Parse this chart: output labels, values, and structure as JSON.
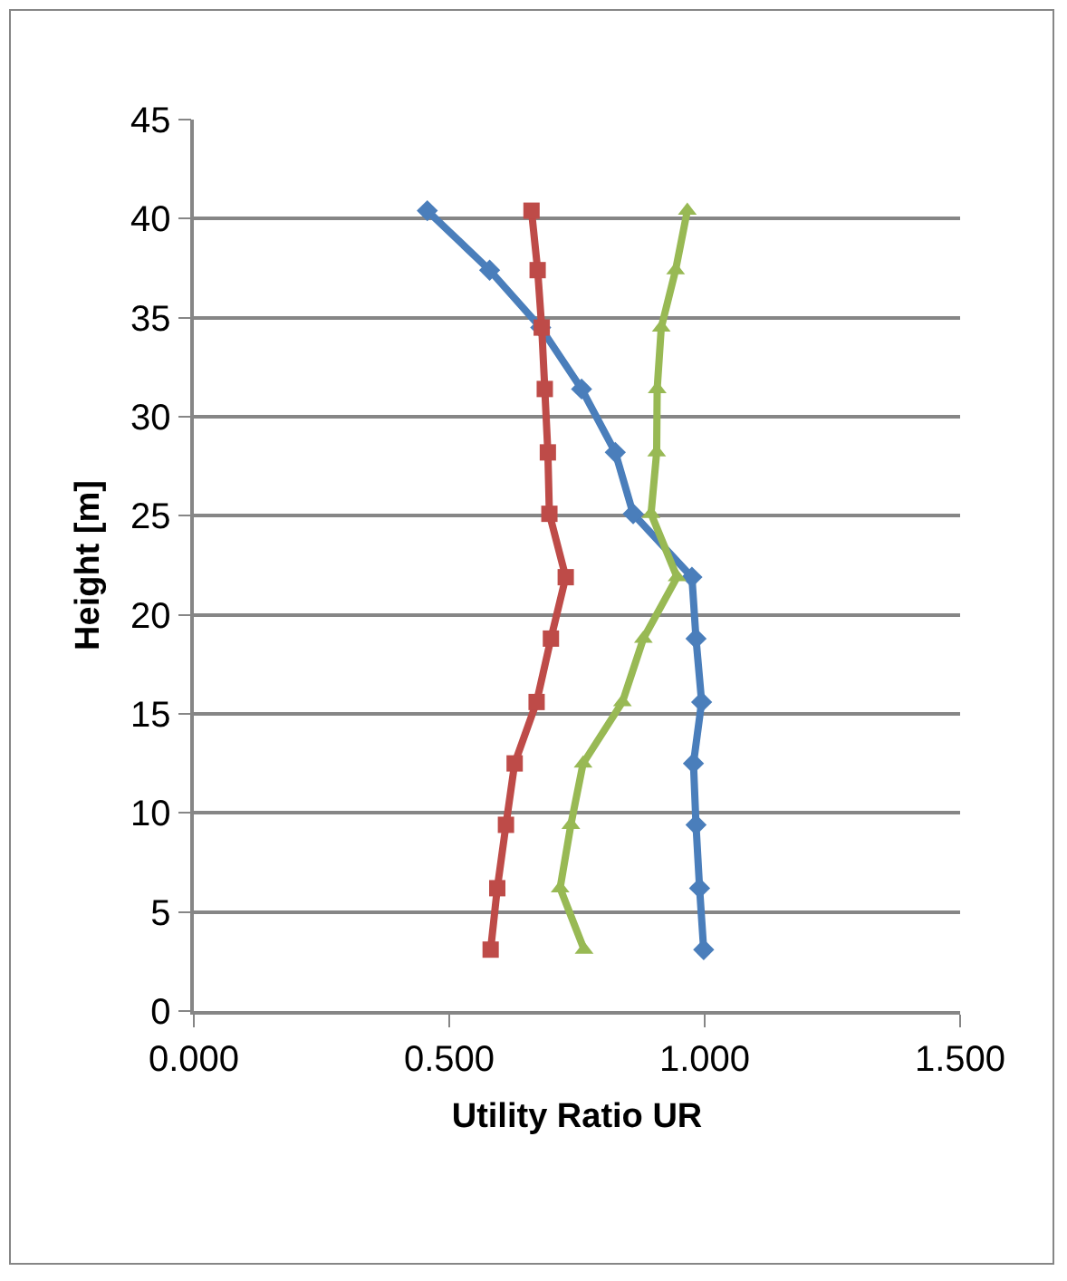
{
  "chart_data": {
    "type": "line",
    "xlabel": "Utility Ratio UR",
    "ylabel": "Height [m]",
    "xlim": [
      0,
      1.5
    ],
    "xticks": [
      {
        "value": 0,
        "label": "0.000"
      },
      {
        "value": 0.5,
        "label": "0.500"
      },
      {
        "value": 1,
        "label": "1.000"
      },
      {
        "value": 1.5,
        "label": "1.500"
      }
    ],
    "ylim": [
      0,
      45
    ],
    "yticks": [
      0,
      5,
      10,
      15,
      20,
      25,
      30,
      35,
      40,
      45
    ],
    "grid": "y",
    "line_style": "solid",
    "series": [
      {
        "color": "#4a7ebb",
        "marker": "diamond",
        "x": [
          0.998,
          0.99,
          0.983,
          0.978,
          0.994,
          0.983,
          0.975,
          0.86,
          0.825,
          0.759,
          0.679,
          0.579,
          0.457
        ],
        "values": [
          3.1,
          6.2,
          9.4,
          12.5,
          15.6,
          18.8,
          21.9,
          25.1,
          28.2,
          31.4,
          34.5,
          37.4,
          40.4
        ]
      },
      {
        "color": "#be4b48",
        "marker": "square",
        "x": [
          0.581,
          0.594,
          0.611,
          0.628,
          0.671,
          0.699,
          0.728,
          0.696,
          0.693,
          0.687,
          0.681,
          0.673,
          0.661
        ],
        "values": [
          3.1,
          6.2,
          9.4,
          12.5,
          15.6,
          18.8,
          21.9,
          25.1,
          28.2,
          31.4,
          34.5,
          37.4,
          40.4
        ]
      },
      {
        "color": "#98b954",
        "marker": "triangle",
        "x": [
          0.764,
          0.717,
          0.738,
          0.762,
          0.839,
          0.88,
          0.946,
          0.895,
          0.906,
          0.907,
          0.915,
          0.943,
          0.966
        ],
        "values": [
          3.1,
          6.2,
          9.4,
          12.5,
          15.6,
          18.8,
          21.9,
          25.1,
          28.2,
          31.4,
          34.5,
          37.4,
          40.4
        ]
      }
    ]
  }
}
